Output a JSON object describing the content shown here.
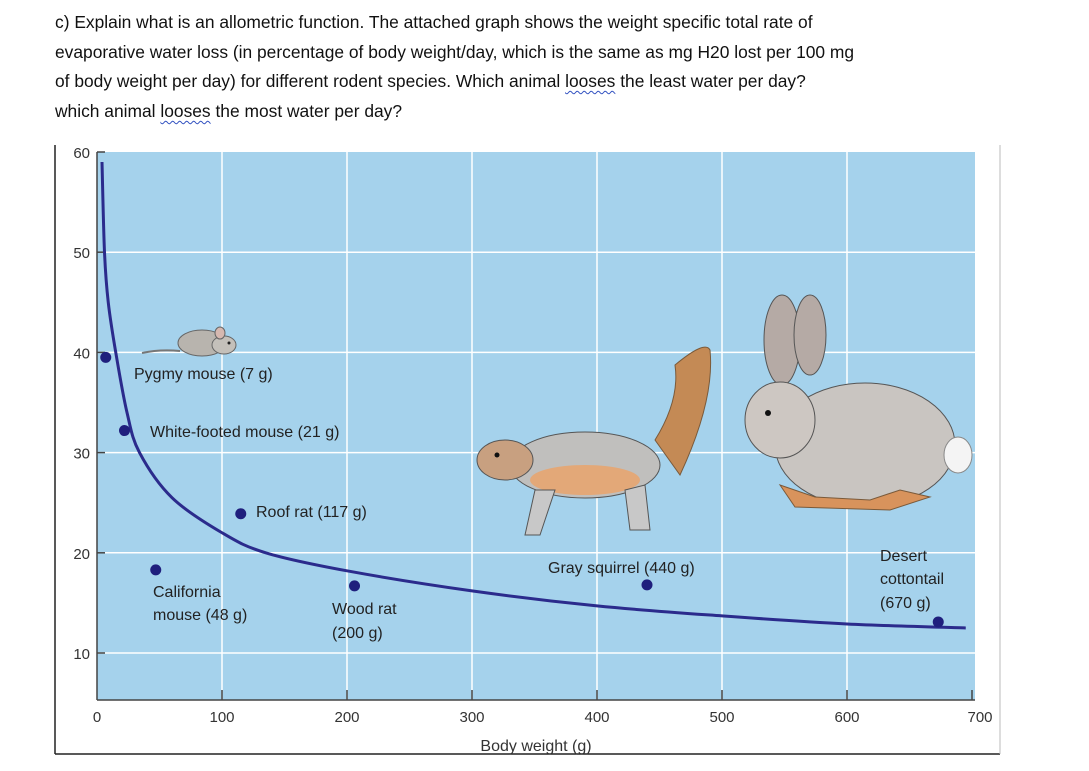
{
  "question": {
    "line1": "c) Explain what is an allometric function. The attached graph shows the weight specific total rate of",
    "line2": "evaporative water loss (in percentage of body weight/day, which is the same as mg H20 lost per 100 mg",
    "line3_a": "of body weight per day) for different rodent species. Which animal ",
    "line3_b": "looses",
    "line3_c": " the least water per day?",
    "line4_a": "which animal ",
    "line4_b": "looses",
    "line4_c": " the most water per day?"
  },
  "chart_data": {
    "type": "scatter",
    "xlabel": "Body weight (g)",
    "ylabel": "",
    "xlim": [
      0,
      700
    ],
    "ylim": [
      5,
      60
    ],
    "x_ticks": [
      "0",
      "100",
      "200",
      "300",
      "400",
      "500",
      "600",
      "700"
    ],
    "y_ticks": [
      "60",
      "50",
      "40",
      "30",
      "20",
      "10"
    ],
    "grid": true,
    "colors": {
      "background": "#a5d2ec",
      "grid": "#ffffff",
      "curve": "#2b2b8c",
      "points": "#1f1f7d"
    },
    "points": [
      {
        "label": "Pygmy mouse (7 g)",
        "x": 7,
        "y": 39.5
      },
      {
        "label": "White-footed mouse (21 g)",
        "x": 22,
        "y": 32.2
      },
      {
        "label_lines": [
          "California",
          "mouse (48 g)"
        ],
        "x": 47,
        "y": 18.3
      },
      {
        "label": "Roof rat (117 g)",
        "x": 115,
        "y": 23.9
      },
      {
        "label_lines": [
          "Wood rat",
          "(200 g)"
        ],
        "x": 206,
        "y": 16.7
      },
      {
        "label": "Gray squirrel (440 g)",
        "x": 440,
        "y": 16.8
      },
      {
        "label_lines": [
          "Desert",
          "cottontail",
          "(670 g)"
        ],
        "x": 673,
        "y": 13.1
      }
    ],
    "fit_curve": [
      [
        4,
        59
      ],
      [
        6,
        50
      ],
      [
        9,
        45
      ],
      [
        15,
        40
      ],
      [
        24,
        34
      ],
      [
        34,
        30
      ],
      [
        60,
        25.5
      ],
      [
        100,
        22
      ],
      [
        135,
        20
      ],
      [
        200,
        18.2
      ],
      [
        300,
        16.2
      ],
      [
        400,
        14.7
      ],
      [
        500,
        13.7
      ],
      [
        600,
        12.9
      ],
      [
        695,
        12.5
      ]
    ],
    "illustrations": [
      "mouse",
      "squirrel",
      "rabbit"
    ]
  }
}
